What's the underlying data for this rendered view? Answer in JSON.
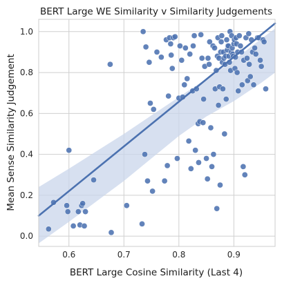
{
  "chart_data": {
    "type": "scatter",
    "title": "BERT Large WE Similarity v Similarity Judgements",
    "xlabel": "BERT Large Cosine Similarity (Last 4)",
    "ylabel": "Mean Sense Similarity Judgement",
    "xlim": [
      0.545,
      0.975
    ],
    "ylim": [
      -0.05,
      1.06
    ],
    "xticks": [
      0.6,
      0.7,
      0.8,
      0.9
    ],
    "xtick_labels": [
      "0.6",
      "0.7",
      "0.8",
      "0.9"
    ],
    "yticks": [
      0.0,
      0.2,
      0.4,
      0.6,
      0.8,
      1.0
    ],
    "ytick_labels": [
      "0.0",
      "0.2",
      "0.4",
      "0.6",
      "0.8",
      "1.0"
    ],
    "grid": true,
    "colors": {
      "points": "#4c72b0",
      "regression_line": "#4c72b0",
      "confidence_band": "#c9d5eb",
      "grid": "#cfcfcf"
    },
    "regression": {
      "x": [
        0.545,
        0.975
      ],
      "y": [
        0.1,
        1.04
      ]
    },
    "confidence_band": {
      "x": [
        0.545,
        0.6,
        0.65,
        0.7,
        0.75,
        0.8,
        0.85,
        0.9,
        0.95,
        0.975
      ],
      "upper": [
        0.24,
        0.33,
        0.415,
        0.5,
        0.59,
        0.68,
        0.77,
        0.86,
        0.965,
        1.015
      ],
      "lower": [
        -0.035,
        0.07,
        0.17,
        0.27,
        0.38,
        0.49,
        0.585,
        0.66,
        0.75,
        0.8
      ]
    },
    "points": {
      "x": [
        0.563,
        0.572,
        0.596,
        0.598,
        0.6,
        0.608,
        0.617,
        0.62,
        0.623,
        0.625,
        0.628,
        0.63,
        0.645,
        0.675,
        0.677,
        0.705,
        0.733,
        0.735,
        0.738,
        0.74,
        0.743,
        0.746,
        0.748,
        0.752,
        0.754,
        0.76,
        0.768,
        0.774,
        0.777,
        0.779,
        0.781,
        0.783,
        0.785,
        0.786,
        0.788,
        0.79,
        0.793,
        0.797,
        0.8,
        0.802,
        0.805,
        0.807,
        0.81,
        0.812,
        0.815,
        0.818,
        0.82,
        0.822,
        0.825,
        0.826,
        0.828,
        0.83,
        0.832,
        0.835,
        0.836,
        0.838,
        0.84,
        0.842,
        0.844,
        0.845,
        0.847,
        0.85,
        0.852,
        0.853,
        0.855,
        0.856,
        0.858,
        0.86,
        0.862,
        0.863,
        0.865,
        0.866,
        0.868,
        0.869,
        0.87,
        0.871,
        0.872,
        0.873,
        0.874,
        0.875,
        0.876,
        0.877,
        0.878,
        0.879,
        0.88,
        0.881,
        0.882,
        0.883,
        0.884,
        0.885,
        0.886,
        0.887,
        0.888,
        0.889,
        0.89,
        0.891,
        0.892,
        0.893,
        0.894,
        0.895,
        0.896,
        0.897,
        0.898,
        0.899,
        0.9,
        0.901,
        0.902,
        0.903,
        0.904,
        0.905,
        0.906,
        0.907,
        0.908,
        0.91,
        0.912,
        0.914,
        0.915,
        0.917,
        0.918,
        0.92,
        0.922,
        0.924,
        0.925,
        0.927,
        0.928,
        0.93,
        0.932,
        0.934,
        0.936,
        0.938,
        0.94,
        0.943,
        0.945,
        0.948,
        0.95,
        0.953,
        0.955,
        0.958
      ],
      "y": [
        0.035,
        0.165,
        0.15,
        0.12,
        0.42,
        0.05,
        0.12,
        0.055,
        0.15,
        0.16,
        0.05,
        0.12,
        0.275,
        0.84,
        0.018,
        0.15,
        0.06,
        1.0,
        0.4,
        0.925,
        0.27,
        0.85,
        0.65,
        0.22,
        0.62,
        0.9,
        0.875,
        0.27,
        0.96,
        0.345,
        0.685,
        0.97,
        0.94,
        0.885,
        0.82,
        0.97,
        0.975,
        0.38,
        0.675,
        0.93,
        0.86,
        0.68,
        0.74,
        0.92,
        0.77,
        0.465,
        0.89,
        0.33,
        0.71,
        0.93,
        0.98,
        0.42,
        0.72,
        0.55,
        0.36,
        0.56,
        0.985,
        0.87,
        0.555,
        0.67,
        0.83,
        0.38,
        0.28,
        0.87,
        0.84,
        0.95,
        0.53,
        0.34,
        0.93,
        0.4,
        0.92,
        0.72,
        0.81,
        0.135,
        0.88,
        0.97,
        0.64,
        0.87,
        0.73,
        0.25,
        0.9,
        0.95,
        0.98,
        0.85,
        0.72,
        0.9,
        0.87,
        0.5,
        0.84,
        0.88,
        0.67,
        0.96,
        0.91,
        0.93,
        0.93,
        0.88,
        0.85,
        1.0,
        0.81,
        0.9,
        0.98,
        0.92,
        0.89,
        0.88,
        0.94,
        0.96,
        0.82,
        0.875,
        0.97,
        0.94,
        0.8,
        0.9,
        0.71,
        0.98,
        0.93,
        0.9,
        0.74,
        0.34,
        0.86,
        0.3,
        0.97,
        0.87,
        0.76,
        0.99,
        0.84,
        0.78,
        0.96,
        0.9,
        0.74,
        0.92,
        0.89,
        0.97,
        0.97,
        0.86,
        0.83,
        0.96,
        0.95,
        0.72
      ]
    }
  }
}
